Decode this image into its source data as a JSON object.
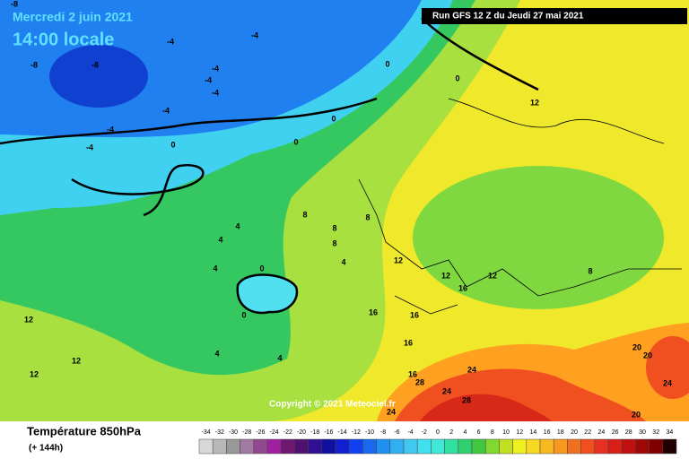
{
  "header": {
    "date": "Mercredi 2 juin 2021",
    "time": "14:00 locale",
    "run": "Run GFS 12 Z du Jeudi 27 mai 2021"
  },
  "copyright": "Copyright © 2021 Meteociel.fr",
  "footer": {
    "title": "Température 850hPa",
    "lead": "(+ 144h)"
  },
  "map": {
    "contour_labels": [
      -8,
      -8,
      -8,
      -4,
      -4,
      -4,
      -4,
      -4,
      -4,
      -4,
      -4,
      0,
      0,
      0,
      0,
      0,
      0,
      0,
      4,
      4,
      4,
      4,
      4,
      4,
      8,
      8,
      8,
      8,
      8,
      12,
      12,
      12,
      12,
      12,
      12,
      12,
      16,
      16,
      16,
      16,
      16,
      20,
      20,
      24,
      24,
      24,
      28,
      28,
      20,
      24
    ]
  },
  "scale": {
    "values": [
      -34,
      -32,
      -30,
      -28,
      -26,
      -24,
      -22,
      -20,
      -18,
      -16,
      -14,
      -12,
      -10,
      -8,
      -6,
      -4,
      -2,
      0,
      2,
      4,
      6,
      8,
      10,
      12,
      14,
      16,
      18,
      20,
      22,
      24,
      26,
      28,
      30,
      32,
      34
    ],
    "colors": [
      "#d8d8d8",
      "#b8b8b8",
      "#989898",
      "#a07aa0",
      "#904890",
      "#a020a0",
      "#701870",
      "#501070",
      "#301090",
      "#1010a0",
      "#1020d0",
      "#1040f0",
      "#1868f0",
      "#2090f0",
      "#30b0f0",
      "#40c8f0",
      "#40e0f0",
      "#40e8d8",
      "#30e0a0",
      "#30d070",
      "#40c840",
      "#80d830",
      "#c0e020",
      "#f0f020",
      "#f8d820",
      "#f8b820",
      "#f89820",
      "#f07020",
      "#f05020",
      "#e83020",
      "#d82018",
      "#c01010",
      "#a00808",
      "#800000",
      "#200000"
    ]
  }
}
